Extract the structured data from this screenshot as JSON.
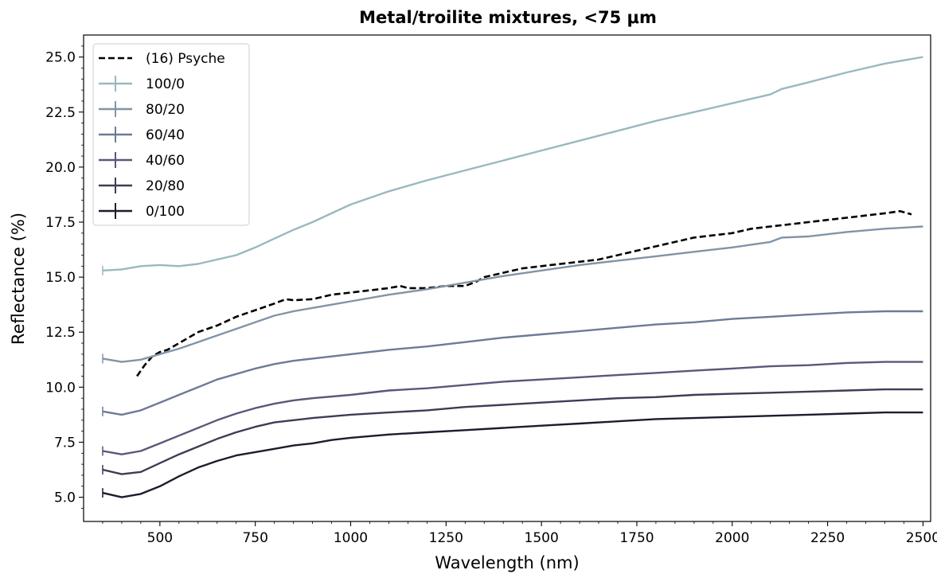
{
  "chart_data": {
    "type": "line",
    "title": "Metal/troilite mixtures, <75 μm",
    "xlabel": "Wavelength (nm)",
    "ylabel": "Reflectance (%)",
    "xlim": [
      300,
      2520
    ],
    "ylim": [
      3.9,
      26.0
    ],
    "xticks": [
      500,
      750,
      1000,
      1250,
      1500,
      1750,
      2000,
      2250,
      2500
    ],
    "xtick_labels": [
      "500",
      "750",
      "1000",
      "1250",
      "1500",
      "1750",
      "2000",
      "2250",
      "2500"
    ],
    "yticks": [
      5.0,
      7.5,
      10.0,
      12.5,
      15.0,
      17.5,
      20.0,
      22.5,
      25.0
    ],
    "ytick_labels": [
      "5.0",
      "7.5",
      "10.0",
      "12.5",
      "15.0",
      "17.5",
      "20.0",
      "22.5",
      "25.0"
    ],
    "grid": false,
    "legend_position": "top-left",
    "series": [
      {
        "name": "(16) Psyche",
        "style": "dashed",
        "color": "#000000",
        "x": [
          440,
          460,
          480,
          500,
          520,
          550,
          600,
          650,
          700,
          750,
          800,
          830,
          850,
          900,
          950,
          1000,
          1050,
          1100,
          1130,
          1150,
          1200,
          1250,
          1300,
          1330,
          1350,
          1400,
          1450,
          1500,
          1550,
          1600,
          1650,
          1700,
          1750,
          1800,
          1850,
          1900,
          1950,
          2000,
          2050,
          2100,
          2150,
          2200,
          2250,
          2300,
          2350,
          2400,
          2440,
          2470
        ],
        "y": [
          10.5,
          11.0,
          11.4,
          11.6,
          11.7,
          12.0,
          12.5,
          12.8,
          13.2,
          13.5,
          13.8,
          14.0,
          13.95,
          14.0,
          14.2,
          14.3,
          14.4,
          14.5,
          14.6,
          14.5,
          14.5,
          14.6,
          14.6,
          14.8,
          15.0,
          15.2,
          15.4,
          15.5,
          15.6,
          15.7,
          15.8,
          16.0,
          16.2,
          16.4,
          16.6,
          16.8,
          16.9,
          17.0,
          17.2,
          17.3,
          17.4,
          17.5,
          17.6,
          17.7,
          17.8,
          17.9,
          18.0,
          17.85
        ]
      },
      {
        "name": "100/0",
        "color": "#9bb8bf",
        "x": [
          350,
          400,
          450,
          500,
          550,
          600,
          650,
          700,
          750,
          800,
          850,
          900,
          950,
          1000,
          1100,
          1200,
          1300,
          1400,
          1500,
          1600,
          1700,
          1800,
          1900,
          2000,
          2100,
          2130,
          2200,
          2300,
          2400,
          2500
        ],
        "y": [
          15.3,
          15.35,
          15.5,
          15.55,
          15.5,
          15.6,
          15.8,
          16.0,
          16.35,
          16.75,
          17.15,
          17.5,
          17.9,
          18.3,
          18.9,
          19.4,
          19.85,
          20.3,
          20.75,
          21.2,
          21.65,
          22.1,
          22.5,
          22.9,
          23.3,
          23.55,
          23.85,
          24.3,
          24.7,
          25.0
        ]
      },
      {
        "name": "80/20",
        "color": "#8294a6",
        "x": [
          350,
          400,
          450,
          500,
          550,
          600,
          650,
          700,
          750,
          800,
          850,
          900,
          1000,
          1100,
          1200,
          1300,
          1400,
          1500,
          1600,
          1700,
          1800,
          1900,
          2000,
          2100,
          2130,
          2200,
          2300,
          2400,
          2500
        ],
        "y": [
          11.3,
          11.15,
          11.25,
          11.5,
          11.75,
          12.05,
          12.35,
          12.65,
          12.95,
          13.25,
          13.45,
          13.6,
          13.9,
          14.2,
          14.45,
          14.75,
          15.05,
          15.3,
          15.55,
          15.75,
          15.95,
          16.15,
          16.35,
          16.6,
          16.8,
          16.85,
          17.05,
          17.2,
          17.3
        ]
      },
      {
        "name": "60/40",
        "color": "#6e7a96",
        "x": [
          350,
          400,
          450,
          500,
          550,
          600,
          650,
          700,
          750,
          800,
          850,
          900,
          1000,
          1100,
          1200,
          1300,
          1400,
          1500,
          1600,
          1700,
          1800,
          1900,
          2000,
          2100,
          2200,
          2300,
          2400,
          2500
        ],
        "y": [
          8.9,
          8.75,
          8.95,
          9.3,
          9.65,
          10.0,
          10.35,
          10.6,
          10.85,
          11.05,
          11.2,
          11.3,
          11.5,
          11.7,
          11.85,
          12.05,
          12.25,
          12.4,
          12.55,
          12.7,
          12.85,
          12.95,
          13.1,
          13.2,
          13.3,
          13.4,
          13.45,
          13.45
        ]
      },
      {
        "name": "40/60",
        "color": "#58587a",
        "x": [
          350,
          400,
          450,
          500,
          550,
          600,
          650,
          700,
          750,
          800,
          850,
          900,
          1000,
          1100,
          1200,
          1300,
          1400,
          1500,
          1600,
          1700,
          1800,
          1900,
          2000,
          2100,
          2200,
          2300,
          2400,
          2500
        ],
        "y": [
          7.1,
          6.95,
          7.1,
          7.45,
          7.8,
          8.15,
          8.5,
          8.8,
          9.05,
          9.25,
          9.4,
          9.5,
          9.65,
          9.85,
          9.95,
          10.1,
          10.25,
          10.35,
          10.45,
          10.55,
          10.65,
          10.75,
          10.85,
          10.95,
          11.0,
          11.1,
          11.15,
          11.15
        ]
      },
      {
        "name": "20/80",
        "color": "#3e3c56",
        "x": [
          350,
          400,
          450,
          500,
          550,
          600,
          650,
          700,
          750,
          800,
          850,
          900,
          1000,
          1100,
          1200,
          1300,
          1400,
          1500,
          1600,
          1700,
          1800,
          1900,
          2000,
          2100,
          2200,
          2300,
          2400,
          2500
        ],
        "y": [
          6.25,
          6.05,
          6.15,
          6.55,
          6.95,
          7.3,
          7.65,
          7.95,
          8.2,
          8.4,
          8.5,
          8.6,
          8.75,
          8.85,
          8.95,
          9.1,
          9.2,
          9.3,
          9.4,
          9.5,
          9.55,
          9.65,
          9.7,
          9.75,
          9.8,
          9.85,
          9.9,
          9.9
        ]
      },
      {
        "name": "0/100",
        "color": "#1e1c2c",
        "x": [
          350,
          400,
          450,
          500,
          550,
          600,
          650,
          700,
          750,
          800,
          850,
          900,
          950,
          1000,
          1100,
          1200,
          1300,
          1400,
          1500,
          1600,
          1700,
          1800,
          1900,
          2000,
          2100,
          2200,
          2300,
          2400,
          2500
        ],
        "y": [
          5.2,
          5.0,
          5.15,
          5.5,
          5.95,
          6.35,
          6.65,
          6.9,
          7.05,
          7.2,
          7.35,
          7.45,
          7.6,
          7.7,
          7.85,
          7.95,
          8.05,
          8.15,
          8.25,
          8.35,
          8.45,
          8.55,
          8.6,
          8.65,
          8.7,
          8.75,
          8.8,
          8.85,
          8.85
        ]
      }
    ]
  }
}
